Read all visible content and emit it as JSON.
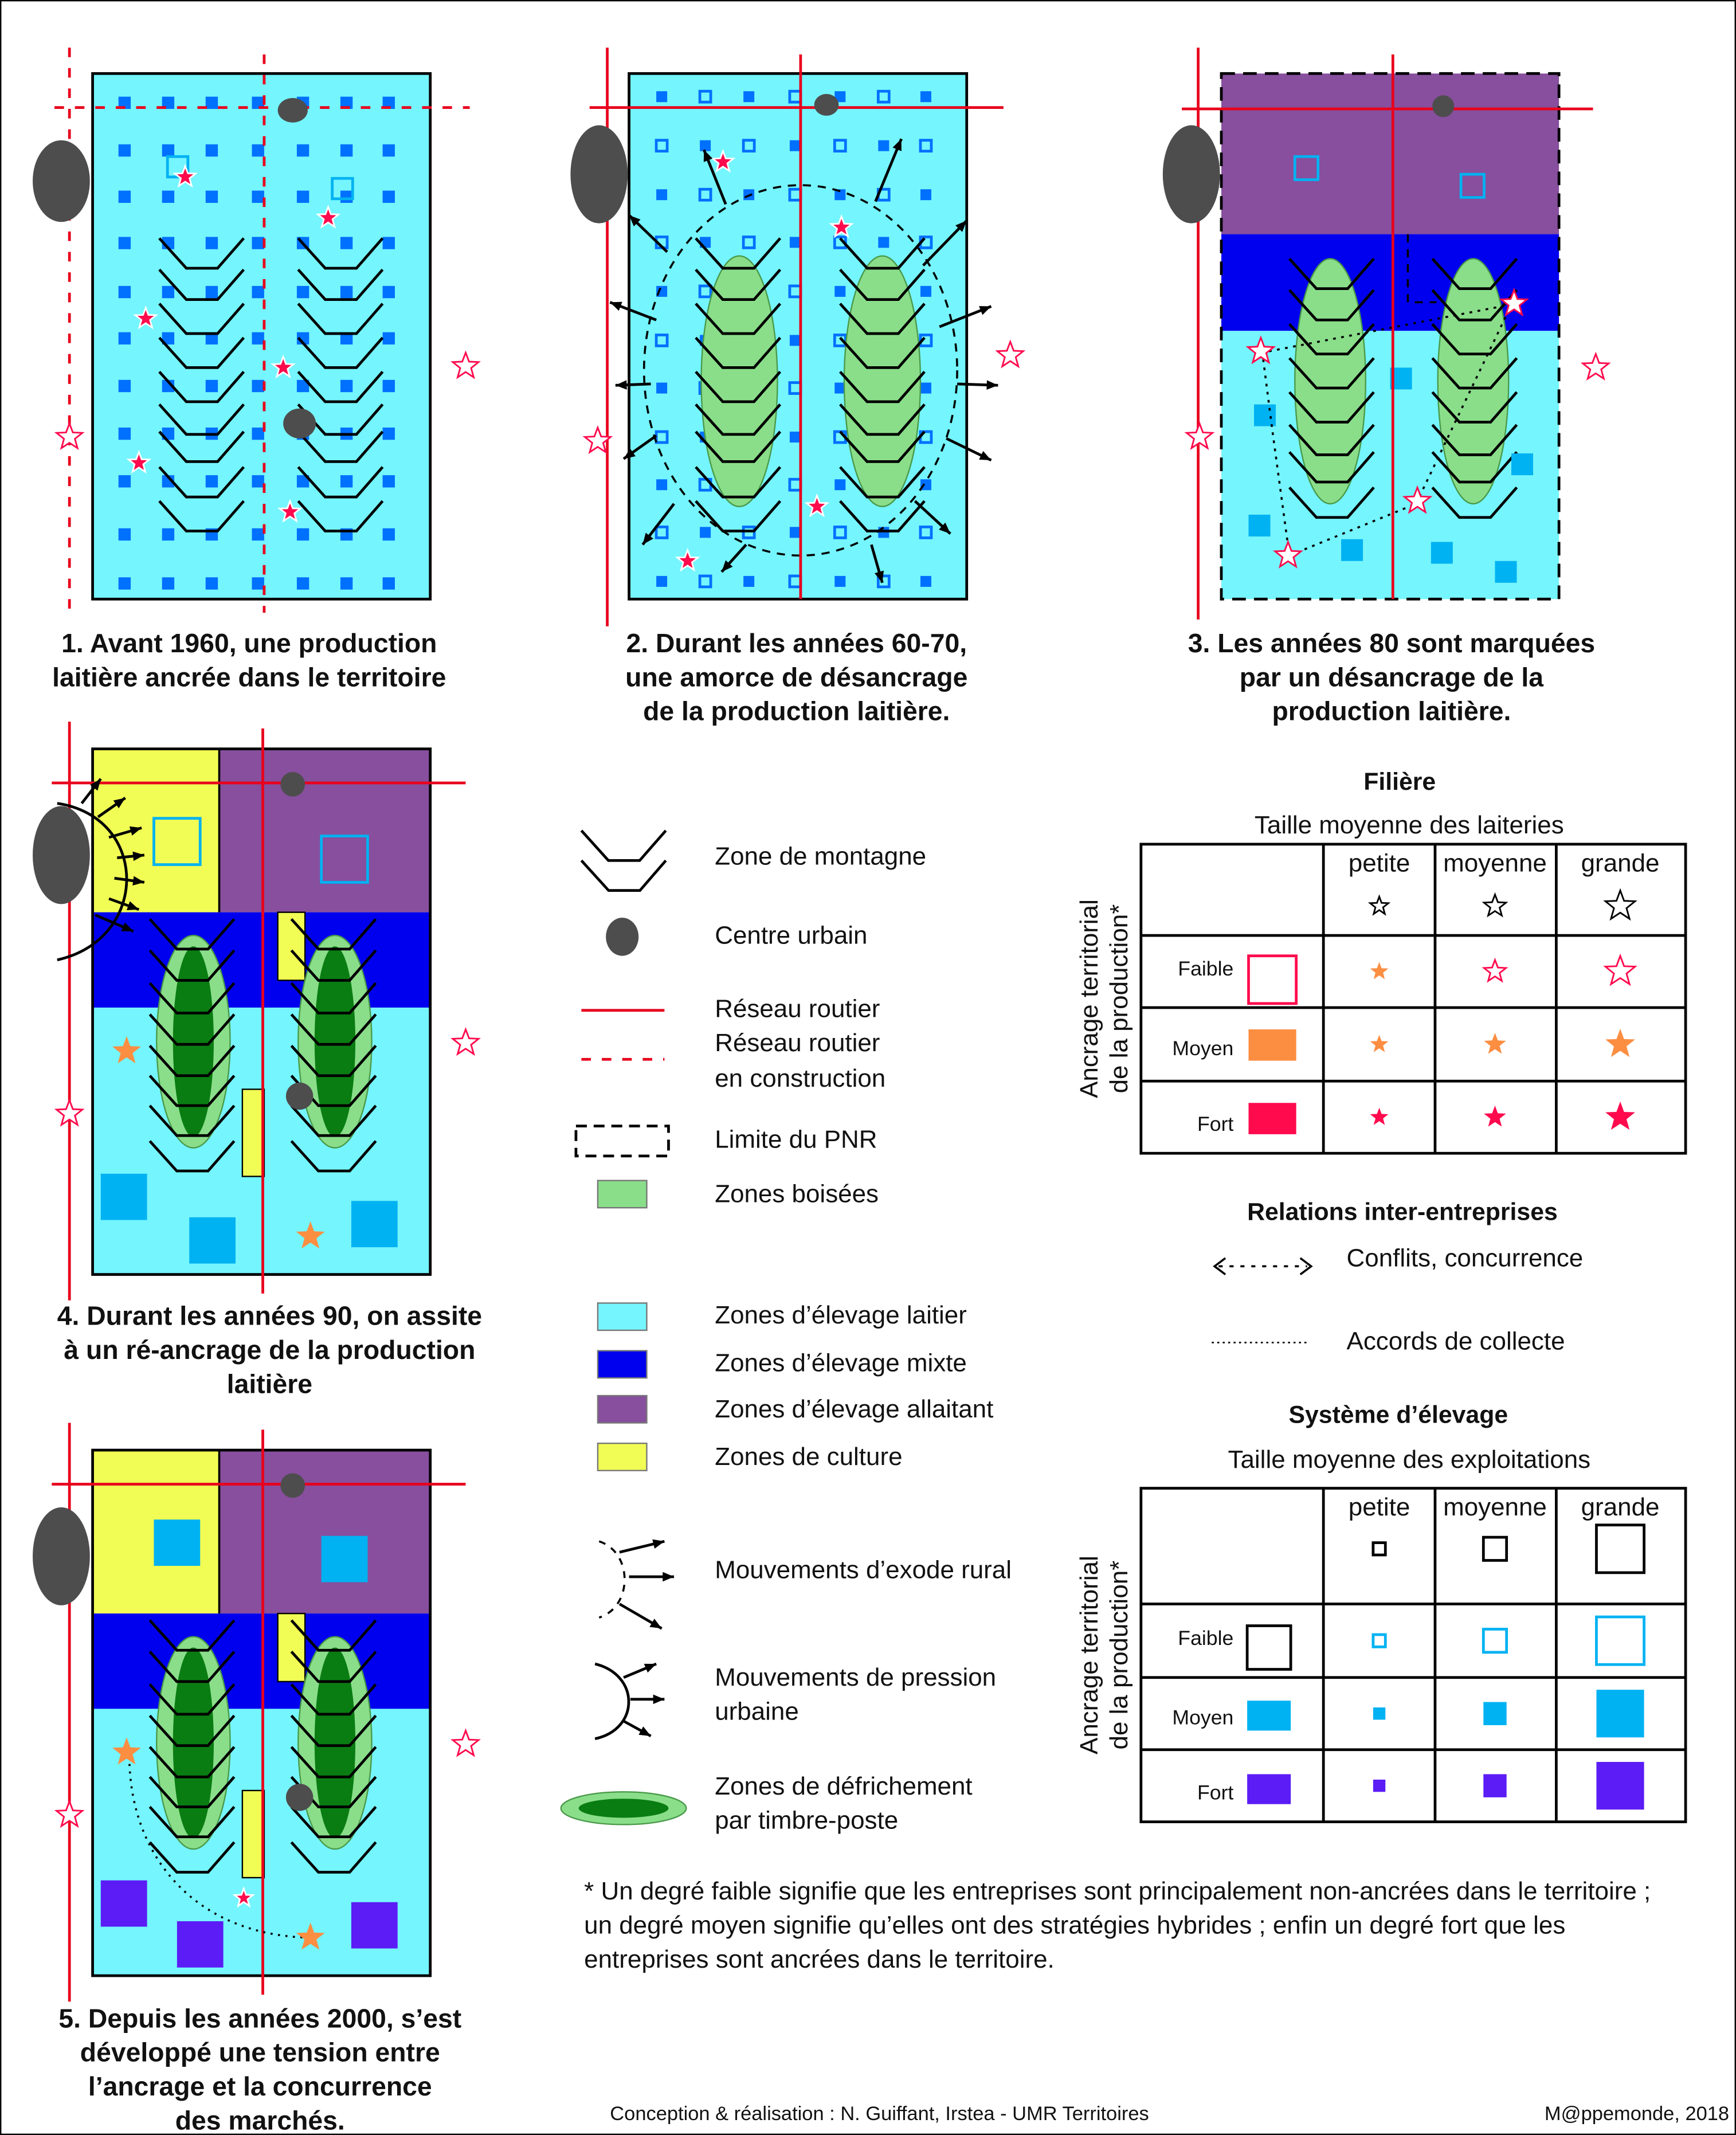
{
  "colors": {
    "dairy": "#75f5fd",
    "mixed": "#0000ee",
    "suckler": "#874f9d",
    "crop": "#f1fd54",
    "road": "#e8001c",
    "urban": "#4d4d4d",
    "forest": "#8ade8a",
    "clearing": "#0a7d12",
    "weak": "#ff0a4d",
    "medium": "#fc8e42",
    "strong": "#ff0a4d",
    "farm_strong": "#5b1cf6",
    "farm_medium": "#00b2f2",
    "farm_weak": "#00b2f2",
    "small_farm": "#0070ff"
  },
  "panels": [
    {
      "caption": [
        "1. Avant 1960, une production",
        "laitière ancrée dans le territoire"
      ]
    },
    {
      "caption": [
        "2. Durant les années 60-70,",
        "une amorce de désancrage",
        "de la production laitière."
      ]
    },
    {
      "caption": [
        "3. Les années 80 sont marquées",
        "par un désancrage de la",
        "production laitière."
      ]
    },
    {
      "caption": [
        "4. Durant les années 90, on assite",
        "à un ré-ancrage de la production",
        "laitière"
      ]
    },
    {
      "caption": [
        "5. Depuis les années 2000, s’est",
        "développé une tension entre",
        "l’ancrage et la concurrence",
        "des marchés."
      ]
    }
  ],
  "legend": {
    "mountain": "Zone de montagne",
    "urban": "Centre urbain",
    "road": "Réseau routier",
    "road_construction": [
      "Réseau routier",
      "en construction"
    ],
    "pnr": "Limite du PNR",
    "forest": "Zones boisées",
    "dairy": "Zones d’élevage laitier",
    "mixed": "Zones d’élevage mixte",
    "suckler": "Zones d’élevage allaitant",
    "crop": "Zones de culture",
    "exodus": "Mouvements d’exode rural",
    "pressure": [
      "Mouvements de pression",
      "urbaine"
    ],
    "clearing": [
      "Zones de défrichement",
      "par timbre-poste"
    ]
  },
  "filiere": {
    "title": "Filière",
    "subtitle": "Taille moyenne des laiteries",
    "cols": [
      "petite",
      "moyenne",
      "grande"
    ],
    "rows": [
      "Faible",
      "Moyen",
      "Fort"
    ],
    "axis": [
      "Ancrage territorial",
      "de la production*"
    ]
  },
  "relations": {
    "title": "Relations inter-entreprises",
    "conflicts": "Conflits, concurrence",
    "agreements": "Accords de collecte"
  },
  "systeme": {
    "title": "Système d’élevage",
    "subtitle": "Taille moyenne des exploitations",
    "cols": [
      "petite",
      "moyenne",
      "grande"
    ],
    "rows": [
      "Faible",
      "Moyen",
      "Fort"
    ],
    "axis": [
      "Ancrage territorial",
      "de la production*"
    ]
  },
  "footnote": [
    "* Un degré faible signifie que les entreprises sont principalement non-ancrées dans le territoire ;",
    "un degré moyen signifie qu’elles ont des stratégies hybrides ; enfin un degré fort que les",
    "entreprises sont ancrées dans le territoire."
  ],
  "credits": "Conception & réalisation : N. Guiffant, Irstea - UMR Territoires",
  "source": "M@ppemonde, 2018"
}
